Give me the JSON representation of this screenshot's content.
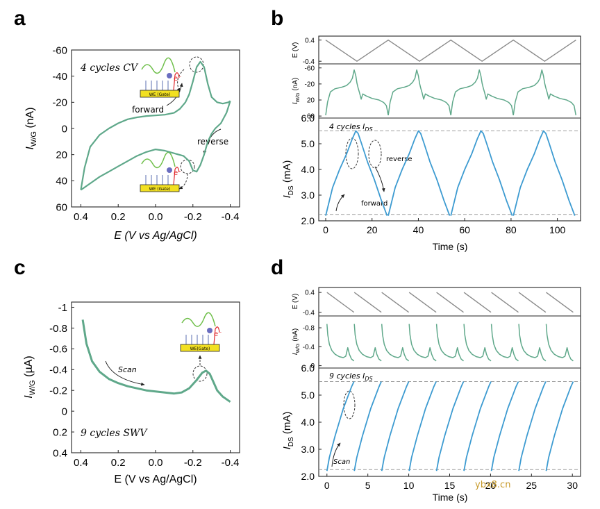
{
  "figure": {
    "panel_letters": [
      "a",
      "b",
      "c",
      "d"
    ],
    "colors": {
      "cv": "#5fa88a",
      "ids": "#3d9bd1",
      "potential": "#8a8a8a",
      "ref_line": "#9a9a9a",
      "chip": "#f2e022",
      "electron": "#e0262a",
      "tag": "#6a6dc0",
      "strand": "#6fbf4a"
    },
    "schematic": {
      "chip_label": "WE (Gate)",
      "chip_label_swv": "WE(Gate)",
      "electron_label": "e⁻"
    },
    "watermark": "ybx8.cn"
  },
  "chart_data": [
    {
      "panel": "a",
      "type": "line",
      "title": "4 cycles CV",
      "xlabel": "E (V vs Ag/AgCl)",
      "ylabel_main": "I",
      "ylabel_sub": "W/G",
      "ylabel_unit": "(nA)",
      "xlim": [
        0.45,
        -0.45
      ],
      "ylim": [
        60,
        -60
      ],
      "xticks": [
        0.4,
        0.2,
        0.0,
        -0.2,
        -0.4
      ],
      "xtick_labels": [
        "0.4",
        "0.2",
        "0.0",
        "-0.2",
        "-0.4"
      ],
      "yticks": [
        -60,
        -40,
        -20,
        0,
        20,
        40,
        60
      ],
      "ytick_labels": [
        "-60",
        "-40",
        "-20",
        "0",
        "20",
        "40",
        "60"
      ],
      "annotations": [
        "forward",
        "reverse"
      ],
      "series": [
        {
          "name": "forward",
          "x": [
            0.4,
            0.38,
            0.35,
            0.3,
            0.25,
            0.2,
            0.15,
            0.1,
            0.05,
            0.0,
            -0.05,
            -0.1,
            -0.13,
            -0.16,
            -0.18,
            -0.2,
            -0.22,
            -0.24,
            -0.26,
            -0.28,
            -0.3,
            -0.33,
            -0.36,
            -0.39,
            -0.4
          ],
          "y": [
            47,
            30,
            14,
            5,
            0,
            -4,
            -7,
            -8.5,
            -9.5,
            -10,
            -10.5,
            -12,
            -15,
            -20,
            -26,
            -36,
            -47,
            -51,
            -47,
            -34,
            -24,
            -20,
            -19,
            -20,
            -21
          ]
        },
        {
          "name": "reverse",
          "x": [
            -0.4,
            -0.38,
            -0.35,
            -0.32,
            -0.3,
            -0.28,
            -0.26,
            -0.24,
            -0.22,
            -0.2,
            -0.18,
            -0.15,
            -0.1,
            -0.05,
            0.0,
            0.05,
            0.1,
            0.15,
            0.2,
            0.25,
            0.3,
            0.35,
            0.38,
            0.4
          ],
          "y": [
            -21,
            -12,
            -4,
            0,
            4,
            10,
            20,
            28,
            33,
            32,
            25,
            21,
            19,
            17,
            16,
            18,
            21,
            25,
            29,
            33,
            37,
            42,
            45,
            47
          ]
        }
      ]
    },
    {
      "panel": "b-top",
      "type": "line",
      "ylabel": "E (V)",
      "ylim": [
        -0.5,
        0.55
      ],
      "yticks": [
        0.4,
        -0.4
      ],
      "ytick_labels": [
        "0.4",
        "-0.4"
      ],
      "xlim": [
        -3,
        110
      ],
      "series": [
        {
          "name": "E",
          "x": [
            0,
            13.5,
            27,
            40.5,
            54,
            67.5,
            81,
            94.5,
            108
          ],
          "y": [
            0.4,
            -0.4,
            0.4,
            -0.4,
            0.4,
            -0.4,
            0.4,
            -0.4,
            0.4
          ]
        }
      ]
    },
    {
      "panel": "b-mid",
      "type": "line",
      "ylabel_main": "I",
      "ylabel_sub": "W/G",
      "ylabel_unit": "(nA)",
      "ylim": [
        65,
        -70
      ],
      "yticks": [
        -60,
        -20,
        20,
        60
      ],
      "ytick_labels": [
        "-60",
        "-20",
        "20",
        "60"
      ],
      "xlim": [
        -3,
        110
      ],
      "series": [
        {
          "name": "cycle_template",
          "t_offsets": [
            0,
            27,
            54,
            81
          ],
          "x": [
            0,
            0.8,
            2,
            4,
            7,
            9,
            10.5,
            11.5,
            12.3,
            13,
            13.5,
            14,
            14.6,
            15.3,
            16,
            17.5,
            20,
            23,
            25,
            26.2,
            27
          ],
          "y": [
            58,
            25,
            0,
            -8,
            -12,
            -16,
            -24,
            -34,
            -55,
            -40,
            -22,
            -10,
            2,
            18,
            5,
            10,
            16,
            20,
            26,
            34,
            58
          ]
        }
      ]
    },
    {
      "panel": "b-bottom",
      "type": "line",
      "title": "4 cycles I",
      "title_sub": "DS",
      "xlabel": "Time (s)",
      "ylabel_main": "I",
      "ylabel_sub": "DS",
      "ylabel_unit": "(mA)",
      "xlim": [
        -3,
        110
      ],
      "ylim": [
        2.0,
        6.0
      ],
      "xticks": [
        0,
        20,
        40,
        60,
        80,
        100
      ],
      "xtick_labels": [
        "0",
        "20",
        "40",
        "60",
        "80",
        "100"
      ],
      "yticks": [
        2.0,
        3.0,
        4.0,
        5.0,
        6.0
      ],
      "ytick_labels": [
        "2.0",
        "3.0",
        "4.0",
        "5.0",
        "6.0"
      ],
      "ref_lines": [
        5.5,
        2.25
      ],
      "annotations": [
        "forward",
        "reverse"
      ],
      "series": [
        {
          "name": "cycle_template",
          "t_offsets": [
            0,
            27,
            54,
            81
          ],
          "x": [
            0,
            3,
            6,
            9,
            11.5,
            13,
            14,
            15.5,
            18,
            21,
            24,
            26.5
          ],
          "y": [
            2.2,
            3.3,
            4.0,
            4.6,
            5.2,
            5.5,
            5.4,
            5.0,
            4.3,
            3.6,
            2.8,
            2.2
          ]
        }
      ]
    },
    {
      "panel": "c",
      "type": "line",
      "title": "9 cycles SWV",
      "xlabel": "E (V vs Ag/AgCl)",
      "ylabel_main": "I",
      "ylabel_sub": "W/G",
      "ylabel_unit": "(µA)",
      "xlim": [
        0.45,
        -0.45
      ],
      "ylim": [
        0.4,
        -1.05
      ],
      "xticks": [
        0.4,
        0.2,
        0.0,
        -0.2,
        -0.4
      ],
      "xtick_labels": [
        "0.4",
        "0.2",
        "0.0",
        "-0.2",
        "-0.4"
      ],
      "yticks": [
        -1.0,
        -0.8,
        -0.6,
        -0.4,
        -0.2,
        0.0,
        0.2,
        0.4
      ],
      "ytick_labels": [
        "-1",
        "-0.8",
        "-0.6",
        "-0.4",
        "-0.2",
        "0",
        "0.2",
        "0.4"
      ],
      "annotations": [
        "Scan"
      ],
      "series": [
        {
          "name": "SWV",
          "x": [
            0.39,
            0.37,
            0.34,
            0.3,
            0.25,
            0.2,
            0.15,
            0.1,
            0.05,
            0.0,
            -0.05,
            -0.1,
            -0.14,
            -0.18,
            -0.22,
            -0.25,
            -0.27,
            -0.29,
            -0.31,
            -0.33,
            -0.36,
            -0.4
          ],
          "y": [
            -0.88,
            -0.65,
            -0.48,
            -0.38,
            -0.31,
            -0.27,
            -0.24,
            -0.22,
            -0.2,
            -0.19,
            -0.18,
            -0.17,
            -0.18,
            -0.22,
            -0.3,
            -0.37,
            -0.39,
            -0.36,
            -0.28,
            -0.2,
            -0.14,
            -0.09
          ]
        }
      ]
    },
    {
      "panel": "d-top",
      "type": "line",
      "ylabel": "E (V)",
      "ylim": [
        -0.55,
        0.6
      ],
      "yticks": [
        0.4,
        -0.4
      ],
      "ytick_labels": [
        "0.4",
        "-0.4"
      ],
      "xlim": [
        -1,
        31
      ],
      "series": [
        {
          "name": "E_cycle",
          "t_offsets": [
            0,
            3.35,
            6.7,
            10.05,
            13.4,
            16.75,
            20.1,
            23.45,
            26.8
          ],
          "x": [
            0,
            3.3
          ],
          "y": [
            0.4,
            -0.4
          ]
        }
      ]
    },
    {
      "panel": "d-mid",
      "type": "line",
      "ylabel_main": "I",
      "ylabel_sub": "W/G",
      "ylabel_unit": "(nA)",
      "ylim": [
        0.05,
        -1.05
      ],
      "yticks": [
        -0.8,
        -0.4,
        0
      ],
      "ytick_labels": [
        "-0.8",
        "-0.4",
        "0"
      ],
      "xlim": [
        -1,
        31
      ],
      "series": [
        {
          "name": "SWV_cycle",
          "t_offsets": [
            0,
            3.35,
            6.7,
            10.05,
            13.4,
            16.75,
            20.1,
            23.45,
            26.8
          ],
          "x": [
            0,
            0.1,
            0.3,
            0.6,
            1.0,
            1.5,
            2.0,
            2.3,
            2.55,
            2.75,
            3.0,
            3.3
          ],
          "y": [
            -0.88,
            -0.65,
            -0.45,
            -0.32,
            -0.24,
            -0.19,
            -0.17,
            -0.2,
            -0.38,
            -0.24,
            -0.14,
            -0.1
          ]
        }
      ]
    },
    {
      "panel": "d-bottom",
      "type": "line",
      "title": "9 cycles I",
      "title_sub": "DS",
      "xlabel": "Time (s)",
      "ylabel_main": "I",
      "ylabel_sub": "DS",
      "ylabel_unit": "(mA)",
      "xlim": [
        -1,
        31
      ],
      "ylim": [
        2.0,
        6.0
      ],
      "xticks": [
        0,
        5,
        10,
        15,
        20,
        25,
        30
      ],
      "xtick_labels": [
        "0",
        "5",
        "10",
        "15",
        "20",
        "25",
        "30"
      ],
      "yticks": [
        2.0,
        3.0,
        4.0,
        5.0,
        6.0
      ],
      "ytick_labels": [
        "2.0",
        "3.0",
        "4.0",
        "5.0",
        "6.0"
      ],
      "ref_lines": [
        5.5,
        2.25
      ],
      "annotations": [
        "Scan"
      ],
      "series": [
        {
          "name": "IDS_cycle",
          "t_offsets": [
            0,
            3.35,
            6.7,
            10.05,
            13.4,
            16.75,
            20.1,
            23.45,
            26.8
          ],
          "x": [
            0,
            0.3,
            1.0,
            2.0,
            3.0,
            3.3
          ],
          "y": [
            2.2,
            2.7,
            3.5,
            4.5,
            5.3,
            5.5
          ]
        }
      ]
    }
  ]
}
